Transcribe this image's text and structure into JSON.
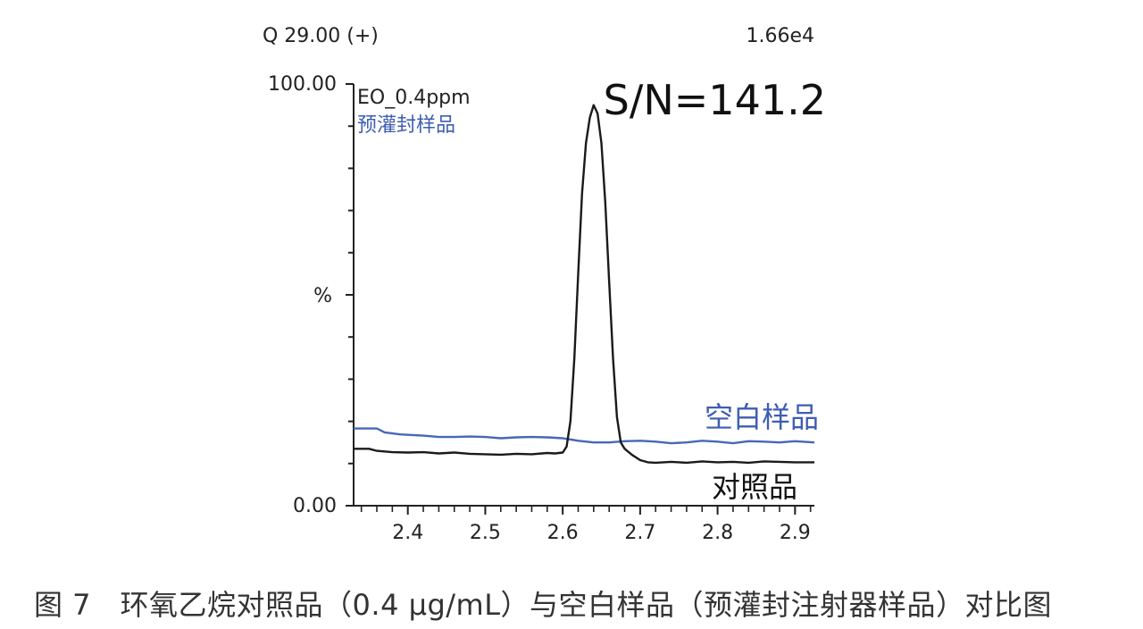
{
  "header": {
    "function_label": "Q 29.00 (+)",
    "intensity": "1.66e4"
  },
  "caption": "图 7　环氧乙烷对照品（0.4 μg/mL）与空白样品（预灌封注射器样品）对比图",
  "chart_data": {
    "type": "line",
    "ylabel": "%",
    "xlabel": "",
    "xlim": [
      2.33,
      2.925
    ],
    "ylim": [
      0,
      100
    ],
    "y_tick_labels": [
      "100.00",
      "0.00"
    ],
    "x_ticks": [
      2.4,
      2.5,
      2.6,
      2.7,
      2.8,
      2.9
    ],
    "x_tick_labels": [
      "2.4",
      "2.5",
      "2.6",
      "2.7",
      "2.8",
      "2.9"
    ],
    "trace_labels": [
      "EO_0.4ppm",
      "预灌封样品"
    ],
    "sn_text": "S/N=141.2",
    "grid": false,
    "series": [
      {
        "name": "空白样品",
        "color": "#4767b8",
        "x": [
          2.33,
          2.36,
          2.37,
          2.39,
          2.42,
          2.44,
          2.46,
          2.48,
          2.5,
          2.52,
          2.54,
          2.56,
          2.58,
          2.6,
          2.62,
          2.64,
          2.66,
          2.68,
          2.7,
          2.72,
          2.74,
          2.76,
          2.78,
          2.8,
          2.82,
          2.84,
          2.86,
          2.88,
          2.9,
          2.925
        ],
        "y": [
          18.3,
          18.3,
          17.4,
          16.9,
          16.6,
          16.3,
          16.3,
          16.4,
          16.3,
          16.0,
          16.2,
          16.3,
          16.2,
          16.0,
          15.4,
          15.0,
          15.0,
          15.3,
          15.4,
          15.2,
          14.8,
          15.0,
          15.4,
          15.2,
          14.8,
          15.3,
          15.2,
          15.0,
          15.3,
          15.0
        ]
      },
      {
        "name": "对照品",
        "color": "#1a1a1a",
        "x": [
          2.33,
          2.35,
          2.36,
          2.38,
          2.4,
          2.42,
          2.44,
          2.46,
          2.48,
          2.5,
          2.52,
          2.54,
          2.56,
          2.58,
          2.59,
          2.6,
          2.605,
          2.61,
          2.615,
          2.62,
          2.625,
          2.63,
          2.635,
          2.64,
          2.645,
          2.65,
          2.655,
          2.66,
          2.665,
          2.67,
          2.675,
          2.68,
          2.69,
          2.7,
          2.71,
          2.72,
          2.74,
          2.76,
          2.78,
          2.8,
          2.82,
          2.84,
          2.86,
          2.88,
          2.9,
          2.925
        ],
        "y": [
          13.5,
          13.5,
          13.0,
          12.7,
          12.6,
          12.7,
          12.4,
          12.6,
          12.3,
          12.2,
          12.1,
          12.3,
          12.2,
          12.5,
          12.4,
          12.6,
          14.0,
          20.0,
          35.0,
          55.0,
          74.0,
          86.0,
          92.0,
          95.0,
          93.0,
          86.0,
          72.0,
          53.0,
          35.0,
          21.0,
          15.0,
          13.5,
          12.0,
          10.8,
          10.3,
          10.2,
          10.4,
          10.2,
          10.5,
          10.3,
          10.4,
          10.2,
          10.5,
          10.4,
          10.3,
          10.3
        ]
      }
    ]
  }
}
